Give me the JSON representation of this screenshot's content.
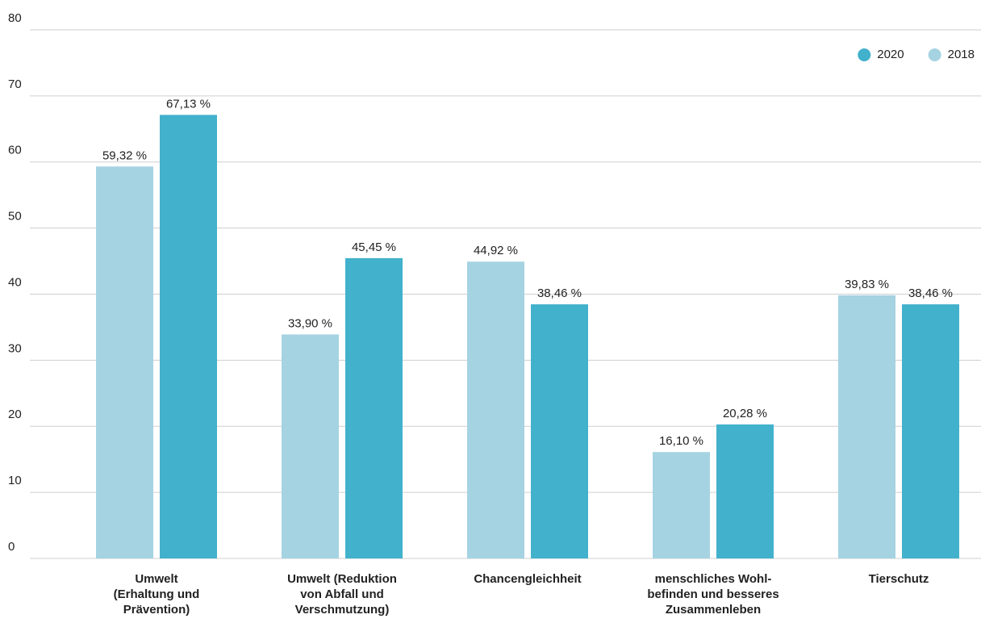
{
  "chart_data": {
    "type": "bar",
    "categories": [
      "Umwelt\n(Erhaltung und\nPrävention)",
      "Umwelt (Reduktion\nvon Abfall und\nVerschmutzung)",
      "Chancengleichheit",
      "menschliches Wohl-\nbefinden und besseres\nZusammenleben",
      "Tierschutz"
    ],
    "series": [
      {
        "name": "2018",
        "color": "#a5d3e2",
        "values": [
          59.32,
          33.9,
          44.92,
          16.1,
          39.83
        ],
        "value_labels": [
          "59,32 %",
          "33,90 %",
          "44,92 %",
          "16,10 %",
          "39,83 %"
        ]
      },
      {
        "name": "2020",
        "color": "#42b1cc",
        "values": [
          67.13,
          45.45,
          38.46,
          20.28,
          38.46
        ],
        "value_labels": [
          "67,13 %",
          "45,45 %",
          "38,46 %",
          "20,28 %",
          "38,46 %"
        ]
      }
    ],
    "ylim": [
      0,
      80
    ],
    "yticks": [
      0,
      10,
      20,
      30,
      40,
      50,
      60,
      70,
      80
    ],
    "grid": true,
    "legend": "top-right"
  }
}
